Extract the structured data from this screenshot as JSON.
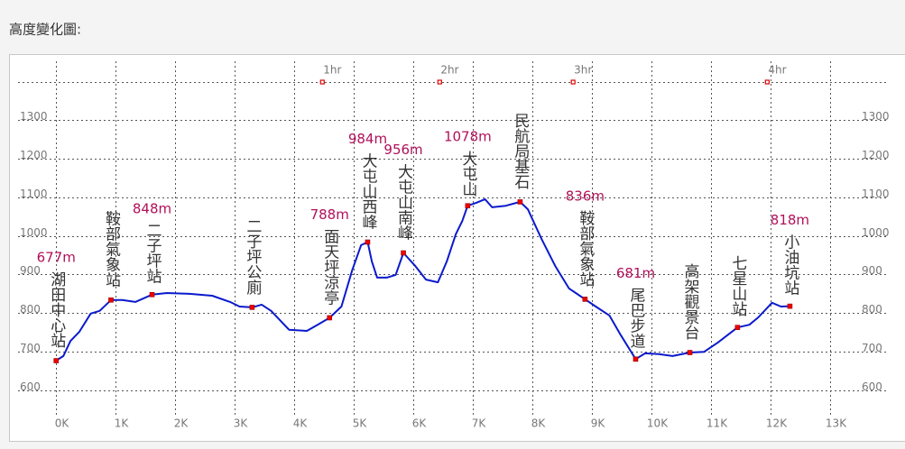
{
  "title": "高度變化圖:",
  "chart_data": {
    "type": "line",
    "color": "#0a1acc",
    "x": [
      0,
      0.12,
      0.24,
      0.39,
      0.58,
      0.73,
      0.92,
      1.11,
      1.33,
      1.61,
      1.86,
      2.24,
      2.62,
      2.92,
      3.08,
      3.29,
      3.45,
      3.61,
      3.91,
      4.21,
      4.39,
      4.59,
      4.79,
      4.97,
      5.12,
      5.23,
      5.3,
      5.39,
      5.55,
      5.7,
      5.83,
      6.03,
      6.21,
      6.41,
      6.56,
      6.71,
      6.82,
      6.91,
      7.06,
      7.2,
      7.32,
      7.55,
      7.79,
      7.92,
      8.15,
      8.38,
      8.61,
      8.88,
      9.06,
      9.29,
      9.48,
      9.73,
      9.89,
      10.12,
      10.35,
      10.64,
      10.88,
      11.11,
      11.44,
      11.64,
      11.79,
      12.02,
      12.17,
      12.32
    ],
    "values": [
      677,
      689,
      728,
      752,
      799,
      806,
      834,
      834,
      829,
      848,
      852,
      850,
      845,
      829,
      817,
      815,
      822,
      806,
      757,
      754,
      770,
      788,
      817,
      911,
      976,
      984,
      934,
      892,
      892,
      899,
      956,
      922,
      887,
      880,
      934,
      1004,
      1039,
      1078,
      1086,
      1095,
      1074,
      1078,
      1088,
      1069,
      992,
      922,
      864,
      836,
      817,
      794,
      743,
      681,
      696,
      694,
      689,
      698,
      700,
      724,
      763,
      770,
      789,
      827,
      817,
      818
    ],
    "xlim": [
      -0.64,
      13.98
    ],
    "ylim": [
      537,
      1452
    ],
    "xticks": [
      {
        "value": 0,
        "label": "0K"
      },
      {
        "value": 1,
        "label": "1K"
      },
      {
        "value": 2,
        "label": "2K"
      },
      {
        "value": 3,
        "label": "3K"
      },
      {
        "value": 4,
        "label": "4K"
      },
      {
        "value": 5,
        "label": "5K"
      },
      {
        "value": 6,
        "label": "6K"
      },
      {
        "value": 7,
        "label": "7K"
      },
      {
        "value": 8,
        "label": "8K"
      },
      {
        "value": 9,
        "label": "9K"
      },
      {
        "value": 10,
        "label": "10K"
      },
      {
        "value": 11,
        "label": "11K"
      },
      {
        "value": 12,
        "label": "12K"
      },
      {
        "value": 13,
        "label": "13K"
      }
    ],
    "yticks": [
      600,
      700,
      800,
      900,
      1000,
      1100,
      1200,
      1300
    ],
    "grid": true,
    "time_marks": {
      "x": [
        4.47,
        6.44,
        8.68,
        11.94
      ],
      "labels": [
        "1hr",
        "2hr",
        "3hr",
        "4hr"
      ]
    },
    "waypoints": {
      "names": [
        "湖田中心站",
        "鞍部氣象站",
        "二子坪站",
        "二子坪公廁",
        "面天坪涼亭",
        "大屯山西峰",
        "大屯山南峰",
        "大屯山",
        "民航局基石",
        "鞍部氣象站",
        "尾巴步道",
        "高架觀景台",
        "七星山站",
        "小油坑站"
      ],
      "x": [
        0,
        0.92,
        1.61,
        3.29,
        4.59,
        5.23,
        5.83,
        6.91,
        7.79,
        8.88,
        9.73,
        10.64,
        11.44,
        12.32
      ],
      "elevations": [
        677,
        834,
        848,
        815,
        788,
        984,
        956,
        1078,
        1088,
        836,
        681,
        698,
        763,
        818
      ],
      "value_labels": [
        "677m",
        null,
        "848m",
        null,
        "788m",
        "984m",
        "956m",
        "1078m",
        null,
        "836m",
        "681m",
        null,
        null,
        "818m"
      ]
    }
  }
}
